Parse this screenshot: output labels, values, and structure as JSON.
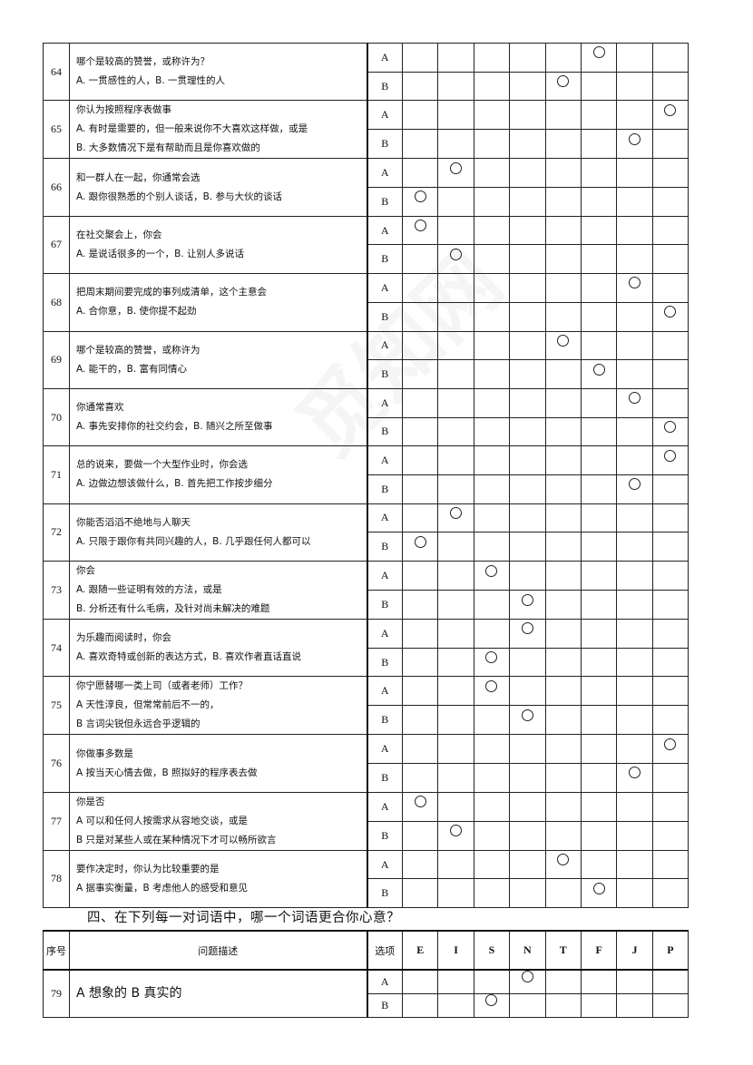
{
  "columns": [
    "E",
    "I",
    "S",
    "N",
    "T",
    "F",
    "J",
    "P"
  ],
  "questions": [
    {
      "num": "64",
      "lines": [
        "哪个是较高的赞誉，或称许为？",
        "A. 一贯感性的人，B. 一贯理性的人"
      ],
      "a": "F",
      "b": "T"
    },
    {
      "num": "65",
      "lines": [
        "你认为按照程序表做事",
        "A. 有时是需要的，但一般来说你不大喜欢这样做，或是",
        "B. 大多数情况下是有帮助而且是你喜欢做的"
      ],
      "a": "P",
      "b": "J"
    },
    {
      "num": "66",
      "lines": [
        "和一群人在一起，你通常会选",
        "A. 跟你很熟悉的个别人谈话，B. 参与大伙的谈话"
      ],
      "a": "I",
      "b": "E"
    },
    {
      "num": "67",
      "lines": [
        "在社交聚会上，你会",
        "A. 是说话很多的一个，B. 让别人多说话"
      ],
      "a": "E",
      "b": "I"
    },
    {
      "num": "68",
      "lines": [
        "把周末期间要完成的事列成清单，这个主意会",
        "A. 合你意，B. 使你提不起劲"
      ],
      "a": "J",
      "b": "P"
    },
    {
      "num": "69",
      "lines": [
        "哪个是较高的赞誉，或称许为",
        "A. 能干的，B. 富有同情心"
      ],
      "a": "T",
      "b": "F"
    },
    {
      "num": "70",
      "lines": [
        "你通常喜欢",
        "A. 事先安排你的社交约会，B. 随兴之所至做事"
      ],
      "a": "J",
      "b": "P"
    },
    {
      "num": "71",
      "lines": [
        "总的说来，要做一个大型作业时，你会选",
        "A. 边做边想该做什么，B. 首先把工作按步细分"
      ],
      "a": "P",
      "b": "J"
    },
    {
      "num": "72",
      "lines": [
        "你能否滔滔不绝地与人聊天",
        "A. 只限于跟你有共同兴趣的人，B. 几乎跟任何人都可以"
      ],
      "a": "I",
      "b": "E"
    },
    {
      "num": "73",
      "lines": [
        "你会",
        "A. 跟随一些证明有效的方法，或是",
        "B. 分析还有什么毛病，及针对尚未解决的难题"
      ],
      "a": "S",
      "b": "N"
    },
    {
      "num": "74",
      "lines": [
        "为乐趣而阅读时，你会",
        "A. 喜欢奇特或创新的表达方式，B. 喜欢作者直话直说"
      ],
      "a": "N",
      "b": "S"
    },
    {
      "num": "75",
      "lines": [
        "你宁愿替哪一类上司（或者老师）工作？",
        "A 天性淳良，但常常前后不一的，",
        "B 言词尖锐但永远合乎逻辑的"
      ],
      "a": "S",
      "b": "N"
    },
    {
      "num": "76",
      "lines": [
        "你做事多数是",
        "A 按当天心情去做，B 照拟好的程序表去做"
      ],
      "a": "P",
      "b": "J"
    },
    {
      "num": "77",
      "lines": [
        "你是否",
        "A 可以和任何人按需求从容地交谈，或是",
        "B 只是对某些人或在某种情况下才可以畅所欲言"
      ],
      "a": "E",
      "b": "I"
    },
    {
      "num": "78",
      "lines": [
        "要作决定时，你认为比较重要的是",
        "A 据事实衡量，B 考虑他人的感受和意见"
      ],
      "a": "T",
      "b": "F"
    }
  ],
  "option_labels": {
    "a": "A",
    "b": "B"
  },
  "section4": {
    "title": "四、在下列每一对词语中，哪一个词语更合你心意？",
    "header": {
      "num": "序号",
      "desc": "问题描述",
      "opt": "选项"
    },
    "questions": [
      {
        "num": "79",
        "lines": [
          "A 想象的 B 真实的"
        ],
        "a": "N",
        "b": "S"
      }
    ]
  }
}
